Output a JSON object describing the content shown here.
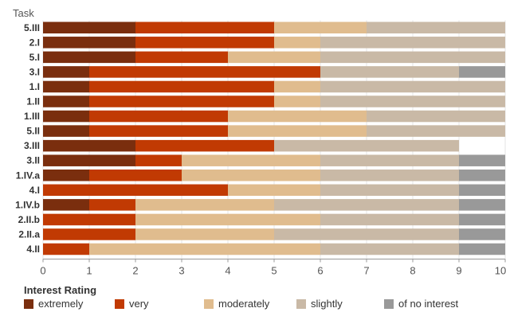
{
  "chart_data": {
    "type": "bar",
    "orientation": "horizontal",
    "stacked": true,
    "row_header": "Task",
    "categories": [
      "5.III",
      "2.I",
      "5.I",
      "3.I",
      "1.I",
      "1.II",
      "1.III",
      "5.II",
      "3.III",
      "3.II",
      "1.IV.a",
      "4.I",
      "1.IV.b",
      "2.II.b",
      "2.II.a",
      "4.II"
    ],
    "series": [
      {
        "name": "extremely",
        "color": "#7a2e0e",
        "values": [
          2,
          2,
          2,
          1,
          1,
          1,
          1,
          1,
          2,
          2,
          1,
          0,
          1,
          0,
          0,
          0
        ]
      },
      {
        "name": "very",
        "color": "#c13a03",
        "values": [
          3,
          3,
          2,
          5,
          4,
          4,
          3,
          3,
          3,
          1,
          2,
          4,
          1,
          2,
          2,
          1
        ]
      },
      {
        "name": "moderately",
        "color": "#e0bc8e",
        "values": [
          2,
          1,
          2,
          0,
          1,
          1,
          3,
          3,
          0,
          3,
          3,
          2,
          3,
          4,
          3,
          5
        ]
      },
      {
        "name": "slightly",
        "color": "#c9b9a6",
        "values": [
          3,
          4,
          4,
          3,
          4,
          4,
          3,
          3,
          4,
          3,
          3,
          3,
          4,
          3,
          4,
          3
        ]
      },
      {
        "name": "of no interest",
        "color": "#999999",
        "values": [
          0,
          0,
          0,
          1,
          0,
          0,
          0,
          0,
          0,
          1,
          1,
          1,
          1,
          1,
          1,
          1
        ]
      }
    ],
    "xlim": [
      0,
      10
    ],
    "xticks": [
      0,
      1,
      2,
      3,
      4,
      5,
      6,
      7,
      8,
      9,
      10
    ],
    "legend_title": "Interest Rating",
    "legend_position": "bottom-left",
    "grid": true
  }
}
